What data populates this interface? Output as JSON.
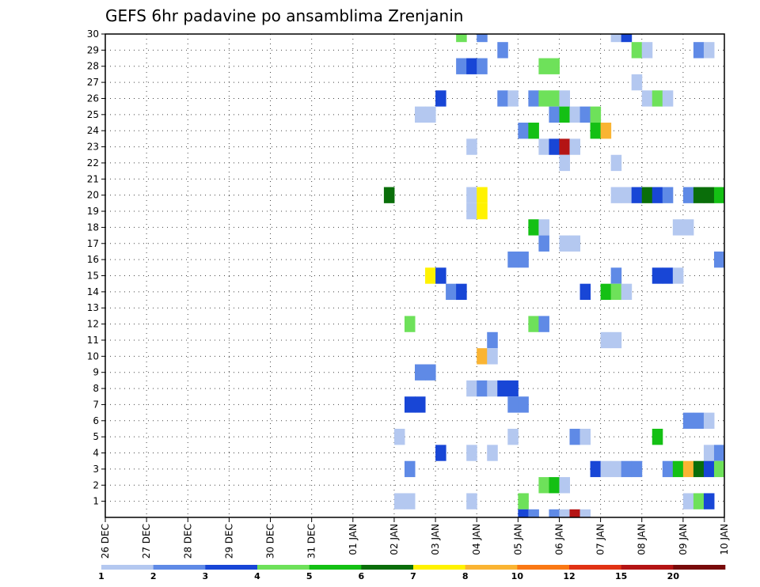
{
  "chart_data": {
    "type": "heatmap",
    "title": "GEFS 6hr padavine po ansamblima Zrenjanin",
    "xlabel": "",
    "ylabel": "",
    "x_categories": [
      "26 DEC",
      "27 DEC",
      "28 DEC",
      "29 DEC",
      "30 DEC",
      "31 DEC",
      "01 JAN",
      "02 JAN",
      "03 JAN",
      "04 JAN",
      "05 JAN",
      "06 JAN",
      "07 JAN",
      "08 JAN",
      "09 JAN",
      "10 JAN"
    ],
    "x_range_days": [
      0,
      15
    ],
    "y_range": [
      0,
      30
    ],
    "y_ticks": [
      1,
      2,
      3,
      4,
      5,
      6,
      7,
      8,
      9,
      10,
      11,
      12,
      13,
      14,
      15,
      16,
      17,
      18,
      19,
      20,
      21,
      22,
      23,
      24,
      25,
      26,
      27,
      28,
      29,
      30
    ],
    "time_step_hours": 6,
    "grid": true,
    "legend_placement": "bottom",
    "color_scale": {
      "labels": [
        "1",
        "2",
        "3",
        "4",
        "5",
        "6",
        "7",
        "8",
        "10",
        "12",
        "15",
        "20"
      ],
      "colors": [
        "#b4c8f0",
        "#5f8ae6",
        "#1846d6",
        "#6ee15a",
        "#14c014",
        "#0a6e0a",
        "#fff200",
        "#fab432",
        "#fa7814",
        "#e13214",
        "#b41414",
        "#780a0a"
      ]
    },
    "cells": [
      {
        "member": 30,
        "x": 8.5,
        "level": 4
      },
      {
        "member": 30,
        "x": 9.0,
        "level": 2
      },
      {
        "member": 30,
        "x": 12.25,
        "level": 1
      },
      {
        "member": 30,
        "x": 12.5,
        "level": 3
      },
      {
        "member": 29,
        "x": 9.5,
        "level": 2
      },
      {
        "member": 29,
        "x": 12.75,
        "level": 4
      },
      {
        "member": 29,
        "x": 13.0,
        "level": 1
      },
      {
        "member": 29,
        "x": 14.25,
        "level": 2
      },
      {
        "member": 29,
        "x": 14.5,
        "level": 1
      },
      {
        "member": 28,
        "x": 8.5,
        "level": 2
      },
      {
        "member": 28,
        "x": 8.75,
        "level": 3
      },
      {
        "member": 28,
        "x": 9.0,
        "level": 2
      },
      {
        "member": 28,
        "x": 10.5,
        "level": 4
      },
      {
        "member": 28,
        "x": 10.75,
        "level": 4
      },
      {
        "member": 27,
        "x": 12.75,
        "level": 1
      },
      {
        "member": 26,
        "x": 8.0,
        "level": 3
      },
      {
        "member": 26,
        "x": 9.5,
        "level": 2
      },
      {
        "member": 26,
        "x": 9.75,
        "level": 1
      },
      {
        "member": 26,
        "x": 10.25,
        "level": 2
      },
      {
        "member": 26,
        "x": 10.5,
        "level": 4
      },
      {
        "member": 26,
        "x": 10.75,
        "level": 4
      },
      {
        "member": 26,
        "x": 11.0,
        "level": 1
      },
      {
        "member": 26,
        "x": 13.0,
        "level": 1
      },
      {
        "member": 26,
        "x": 13.25,
        "level": 4
      },
      {
        "member": 26,
        "x": 13.5,
        "level": 1
      },
      {
        "member": 25,
        "x": 7.5,
        "level": 1
      },
      {
        "member": 25,
        "x": 7.75,
        "level": 1
      },
      {
        "member": 25,
        "x": 10.75,
        "level": 2
      },
      {
        "member": 25,
        "x": 11.0,
        "level": 5
      },
      {
        "member": 25,
        "x": 11.25,
        "level": 1
      },
      {
        "member": 25,
        "x": 11.5,
        "level": 2
      },
      {
        "member": 25,
        "x": 11.75,
        "level": 4
      },
      {
        "member": 24,
        "x": 10.0,
        "level": 2
      },
      {
        "member": 24,
        "x": 10.25,
        "level": 5
      },
      {
        "member": 24,
        "x": 11.75,
        "level": 5
      },
      {
        "member": 24,
        "x": 12.0,
        "level": 8
      },
      {
        "member": 23,
        "x": 8.75,
        "level": 1
      },
      {
        "member": 23,
        "x": 10.5,
        "level": 1
      },
      {
        "member": 23,
        "x": 10.75,
        "level": 3
      },
      {
        "member": 23,
        "x": 11.0,
        "level": 11
      },
      {
        "member": 23,
        "x": 11.25,
        "level": 1
      },
      {
        "member": 22,
        "x": 11.0,
        "level": 1
      },
      {
        "member": 22,
        "x": 12.25,
        "level": 1
      },
      {
        "member": 20,
        "x": 6.75,
        "level": 6
      },
      {
        "member": 20,
        "x": 8.75,
        "level": 1
      },
      {
        "member": 20,
        "x": 9.0,
        "level": 7
      },
      {
        "member": 20,
        "x": 12.25,
        "level": 1
      },
      {
        "member": 20,
        "x": 12.5,
        "level": 1
      },
      {
        "member": 20,
        "x": 12.75,
        "level": 3
      },
      {
        "member": 20,
        "x": 13.0,
        "level": 6
      },
      {
        "member": 20,
        "x": 13.25,
        "level": 3
      },
      {
        "member": 20,
        "x": 13.5,
        "level": 2
      },
      {
        "member": 20,
        "x": 14.0,
        "level": 2
      },
      {
        "member": 20,
        "x": 14.25,
        "level": 6
      },
      {
        "member": 20,
        "x": 14.5,
        "level": 6
      },
      {
        "member": 20,
        "x": 14.75,
        "level": 5
      },
      {
        "member": 19,
        "x": 8.75,
        "level": 1
      },
      {
        "member": 19,
        "x": 9.0,
        "level": 7
      },
      {
        "member": 18,
        "x": 10.25,
        "level": 5
      },
      {
        "member": 18,
        "x": 10.5,
        "level": 1
      },
      {
        "member": 18,
        "x": 13.75,
        "level": 1
      },
      {
        "member": 18,
        "x": 14.0,
        "level": 1
      },
      {
        "member": 17,
        "x": 10.5,
        "level": 2
      },
      {
        "member": 17,
        "x": 11.0,
        "level": 1
      },
      {
        "member": 17,
        "x": 11.25,
        "level": 1
      },
      {
        "member": 16,
        "x": 9.75,
        "level": 2
      },
      {
        "member": 16,
        "x": 10.0,
        "level": 2
      },
      {
        "member": 16,
        "x": 14.75,
        "level": 2
      },
      {
        "member": 15,
        "x": 7.75,
        "level": 7
      },
      {
        "member": 15,
        "x": 8.0,
        "level": 3
      },
      {
        "member": 15,
        "x": 12.25,
        "level": 2
      },
      {
        "member": 15,
        "x": 13.25,
        "level": 3
      },
      {
        "member": 15,
        "x": 13.5,
        "level": 3
      },
      {
        "member": 15,
        "x": 13.75,
        "level": 1
      },
      {
        "member": 14,
        "x": 8.25,
        "level": 2
      },
      {
        "member": 14,
        "x": 8.5,
        "level": 3
      },
      {
        "member": 14,
        "x": 11.5,
        "level": 3
      },
      {
        "member": 14,
        "x": 12.0,
        "level": 5
      },
      {
        "member": 14,
        "x": 12.25,
        "level": 4
      },
      {
        "member": 14,
        "x": 12.5,
        "level": 1
      },
      {
        "member": 12,
        "x": 7.25,
        "level": 4
      },
      {
        "member": 12,
        "x": 10.25,
        "level": 4
      },
      {
        "member": 12,
        "x": 10.5,
        "level": 2
      },
      {
        "member": 11,
        "x": 9.25,
        "level": 2
      },
      {
        "member": 11,
        "x": 12.0,
        "level": 1
      },
      {
        "member": 11,
        "x": 12.25,
        "level": 1
      },
      {
        "member": 10,
        "x": 9.0,
        "level": 8
      },
      {
        "member": 10,
        "x": 9.25,
        "level": 1
      },
      {
        "member": 9,
        "x": 7.5,
        "level": 2
      },
      {
        "member": 9,
        "x": 7.75,
        "level": 2
      },
      {
        "member": 8,
        "x": 8.75,
        "level": 1
      },
      {
        "member": 8,
        "x": 9.0,
        "level": 2
      },
      {
        "member": 8,
        "x": 9.25,
        "level": 1
      },
      {
        "member": 8,
        "x": 9.5,
        "level": 3
      },
      {
        "member": 8,
        "x": 9.75,
        "level": 3
      },
      {
        "member": 7,
        "x": 7.25,
        "level": 3
      },
      {
        "member": 7,
        "x": 7.5,
        "level": 3
      },
      {
        "member": 7,
        "x": 9.75,
        "level": 2
      },
      {
        "member": 7,
        "x": 10.0,
        "level": 2
      },
      {
        "member": 6,
        "x": 14.0,
        "level": 2
      },
      {
        "member": 6,
        "x": 14.25,
        "level": 2
      },
      {
        "member": 6,
        "x": 14.5,
        "level": 1
      },
      {
        "member": 5,
        "x": 7.0,
        "level": 1
      },
      {
        "member": 5,
        "x": 9.75,
        "level": 1
      },
      {
        "member": 5,
        "x": 11.25,
        "level": 2
      },
      {
        "member": 5,
        "x": 11.5,
        "level": 1
      },
      {
        "member": 5,
        "x": 13.25,
        "level": 5
      },
      {
        "member": 4,
        "x": 8.0,
        "level": 3
      },
      {
        "member": 4,
        "x": 8.75,
        "level": 1
      },
      {
        "member": 4,
        "x": 9.25,
        "level": 1
      },
      {
        "member": 4,
        "x": 14.5,
        "level": 1
      },
      {
        "member": 4,
        "x": 14.75,
        "level": 2
      },
      {
        "member": 3,
        "x": 7.25,
        "level": 2
      },
      {
        "member": 3,
        "x": 11.75,
        "level": 3
      },
      {
        "member": 3,
        "x": 12.0,
        "level": 1
      },
      {
        "member": 3,
        "x": 12.25,
        "level": 1
      },
      {
        "member": 3,
        "x": 12.5,
        "level": 2
      },
      {
        "member": 3,
        "x": 12.75,
        "level": 2
      },
      {
        "member": 3,
        "x": 13.5,
        "level": 2
      },
      {
        "member": 3,
        "x": 13.75,
        "level": 5
      },
      {
        "member": 3,
        "x": 14.0,
        "level": 8
      },
      {
        "member": 3,
        "x": 14.25,
        "level": 6
      },
      {
        "member": 3,
        "x": 14.5,
        "level": 3
      },
      {
        "member": 3,
        "x": 14.75,
        "level": 4
      },
      {
        "member": 2,
        "x": 10.5,
        "level": 4
      },
      {
        "member": 2,
        "x": 10.75,
        "level": 5
      },
      {
        "member": 2,
        "x": 11.0,
        "level": 1
      },
      {
        "member": 1,
        "x": 7.0,
        "level": 1
      },
      {
        "member": 1,
        "x": 7.25,
        "level": 1
      },
      {
        "member": 1,
        "x": 8.75,
        "level": 1
      },
      {
        "member": 1,
        "x": 10.0,
        "level": 4
      },
      {
        "member": 1,
        "x": 14.0,
        "level": 1
      },
      {
        "member": 1,
        "x": 14.25,
        "level": 4
      },
      {
        "member": 1,
        "x": 14.5,
        "level": 3
      },
      {
        "member": 0,
        "x": 10.0,
        "level": 3
      },
      {
        "member": 0,
        "x": 10.25,
        "level": 2
      },
      {
        "member": 0,
        "x": 10.75,
        "level": 2
      },
      {
        "member": 0,
        "x": 11.0,
        "level": 1
      },
      {
        "member": 0,
        "x": 11.25,
        "level": 11
      },
      {
        "member": 0,
        "x": 11.5,
        "level": 1
      }
    ]
  }
}
